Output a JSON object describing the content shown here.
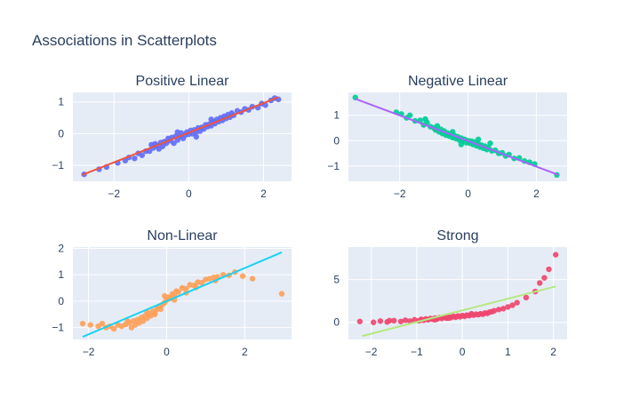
{
  "figure": {
    "title": "Associations in Scatterplots",
    "colors": {
      "plot_bg": "#e5ecf6",
      "grid": "#ffffff",
      "text": "#2a3f5f"
    }
  },
  "chart_data": [
    {
      "type": "scatter",
      "title": "Positive Linear",
      "xlabel": "",
      "ylabel": "",
      "xlim": [
        -3.1,
        2.75
      ],
      "ylim": [
        -1.5,
        1.3
      ],
      "xticks": [
        -2,
        0,
        2
      ],
      "yticks": [
        -1,
        0,
        1
      ],
      "grid": true,
      "point_color": "#636efa",
      "line_color": "#ef553b",
      "trendline": {
        "x": [
          -2.85,
          2.4
        ],
        "y": [
          -1.3,
          1.15
        ]
      },
      "points": [
        [
          -2.8,
          -1.28
        ],
        [
          -2.4,
          -1.12
        ],
        [
          -2.2,
          -1.05
        ],
        [
          -1.9,
          -0.92
        ],
        [
          -1.7,
          -0.85
        ],
        [
          -1.6,
          -0.75
        ],
        [
          -1.45,
          -0.78
        ],
        [
          -1.35,
          -0.62
        ],
        [
          -1.25,
          -0.68
        ],
        [
          -1.15,
          -0.55
        ],
        [
          -1.05,
          -0.55
        ],
        [
          -0.95,
          -0.45
        ],
        [
          -0.9,
          -0.32
        ],
        [
          -0.85,
          -0.38
        ],
        [
          -0.8,
          -0.48
        ],
        [
          -0.75,
          -0.28
        ],
        [
          -0.7,
          -0.4
        ],
        [
          -0.65,
          -0.25
        ],
        [
          -0.6,
          -0.3
        ],
        [
          -0.55,
          -0.15
        ],
        [
          -0.5,
          -0.22
        ],
        [
          -0.45,
          -0.12
        ],
        [
          -0.4,
          -0.3
        ],
        [
          -0.35,
          -0.08
        ],
        [
          -0.3,
          -0.2
        ],
        [
          -0.25,
          -0.1
        ],
        [
          -0.2,
          0.02
        ],
        [
          -0.15,
          -0.15
        ],
        [
          -0.1,
          -0.05
        ],
        [
          -0.05,
          0.05
        ],
        [
          0.0,
          -0.02
        ],
        [
          0.05,
          0.1
        ],
        [
          0.1,
          0.0
        ],
        [
          0.15,
          0.12
        ],
        [
          0.2,
          0.05
        ],
        [
          0.25,
          0.18
        ],
        [
          0.3,
          0.08
        ],
        [
          0.35,
          0.2
        ],
        [
          0.4,
          0.15
        ],
        [
          0.45,
          0.28
        ],
        [
          0.5,
          0.22
        ],
        [
          0.55,
          0.3
        ],
        [
          0.6,
          0.25
        ],
        [
          0.65,
          0.38
        ],
        [
          0.7,
          0.32
        ],
        [
          0.75,
          0.45
        ],
        [
          0.8,
          0.38
        ],
        [
          0.85,
          0.5
        ],
        [
          0.9,
          0.42
        ],
        [
          0.95,
          0.55
        ],
        [
          1.0,
          0.48
        ],
        [
          1.05,
          0.6
        ],
        [
          1.1,
          0.52
        ],
        [
          1.15,
          0.65
        ],
        [
          1.2,
          0.58
        ],
        [
          1.3,
          0.72
        ],
        [
          1.4,
          0.68
        ],
        [
          1.5,
          0.78
        ],
        [
          1.6,
          0.75
        ],
        [
          1.7,
          0.85
        ],
        [
          1.85,
          0.82
        ],
        [
          1.95,
          0.95
        ],
        [
          2.05,
          0.9
        ],
        [
          2.2,
          1.05
        ],
        [
          2.3,
          1.12
        ],
        [
          2.4,
          1.08
        ],
        [
          -0.3,
          0.05
        ],
        [
          0.2,
          -0.1
        ],
        [
          -1.0,
          -0.35
        ],
        [
          0.6,
          0.45
        ]
      ]
    },
    {
      "type": "scatter",
      "title": "Negative Linear",
      "xlabel": "",
      "ylabel": "",
      "xlim": [
        -3.5,
        2.9
      ],
      "ylim": [
        -1.6,
        1.9
      ],
      "xticks": [
        -2,
        0,
        2
      ],
      "yticks": [
        -1,
        0,
        1
      ],
      "grid": true,
      "point_color": "#00cc96",
      "line_color": "#ab63fa",
      "trendline": {
        "x": [
          -3.3,
          2.65
        ],
        "y": [
          1.65,
          -1.35
        ]
      },
      "points": [
        [
          -3.3,
          1.7
        ],
        [
          -2.1,
          1.12
        ],
        [
          -1.95,
          1.05
        ],
        [
          -1.8,
          0.9
        ],
        [
          -1.7,
          1.0
        ],
        [
          -1.55,
          0.78
        ],
        [
          -1.4,
          0.8
        ],
        [
          -1.3,
          0.62
        ],
        [
          -1.2,
          0.72
        ],
        [
          -1.1,
          0.55
        ],
        [
          -1.0,
          0.5
        ],
        [
          -0.95,
          0.42
        ],
        [
          -0.9,
          0.58
        ],
        [
          -0.85,
          0.35
        ],
        [
          -0.8,
          0.45
        ],
        [
          -0.75,
          0.28
        ],
        [
          -0.7,
          0.38
        ],
        [
          -0.65,
          0.22
        ],
        [
          -0.6,
          0.3
        ],
        [
          -0.55,
          0.18
        ],
        [
          -0.5,
          0.25
        ],
        [
          -0.45,
          0.12
        ],
        [
          -0.4,
          0.2
        ],
        [
          -0.35,
          0.08
        ],
        [
          -0.3,
          0.15
        ],
        [
          -0.25,
          0.02
        ],
        [
          -0.2,
          0.1
        ],
        [
          -0.15,
          -0.02
        ],
        [
          -0.1,
          0.05
        ],
        [
          -0.05,
          -0.08
        ],
        [
          0.0,
          0.0
        ],
        [
          0.05,
          -0.1
        ],
        [
          0.1,
          -0.02
        ],
        [
          0.15,
          -0.15
        ],
        [
          0.2,
          -0.05
        ],
        [
          0.25,
          -0.2
        ],
        [
          0.3,
          -0.12
        ],
        [
          0.35,
          -0.25
        ],
        [
          0.4,
          -0.18
        ],
        [
          0.45,
          -0.3
        ],
        [
          0.5,
          -0.22
        ],
        [
          0.55,
          -0.35
        ],
        [
          0.6,
          -0.28
        ],
        [
          0.7,
          -0.4
        ],
        [
          0.8,
          -0.38
        ],
        [
          0.9,
          -0.5
        ],
        [
          1.0,
          -0.48
        ],
        [
          1.1,
          -0.6
        ],
        [
          1.2,
          -0.55
        ],
        [
          1.35,
          -0.7
        ],
        [
          1.5,
          -0.68
        ],
        [
          1.65,
          -0.8
        ],
        [
          1.8,
          -0.85
        ],
        [
          1.95,
          -0.92
        ],
        [
          2.6,
          -1.35
        ],
        [
          -1.25,
          0.85
        ],
        [
          -0.45,
          0.35
        ],
        [
          0.3,
          0.05
        ],
        [
          0.65,
          -0.1
        ],
        [
          -0.2,
          -0.15
        ]
      ]
    },
    {
      "type": "scatter",
      "title": "Non-Linear",
      "xlabel": "",
      "ylabel": "",
      "xlim": [
        -2.4,
        3.2
      ],
      "ylim": [
        -1.45,
        2.05
      ],
      "xticks": [
        -2,
        0,
        2
      ],
      "yticks": [
        -1,
        0,
        1,
        2
      ],
      "grid": true,
      "point_color": "#ffa15a",
      "line_color": "#19d3f3",
      "trendline": {
        "x": [
          -2.15,
          2.95
        ],
        "y": [
          -1.35,
          1.85
        ]
      },
      "points": [
        [
          -2.15,
          -0.85
        ],
        [
          -1.95,
          -0.9
        ],
        [
          -1.75,
          -0.95
        ],
        [
          -1.65,
          -0.85
        ],
        [
          -1.55,
          -1.0
        ],
        [
          -1.45,
          -0.95
        ],
        [
          -1.35,
          -1.05
        ],
        [
          -1.25,
          -0.9
        ],
        [
          -1.15,
          -0.95
        ],
        [
          -1.05,
          -0.88
        ],
        [
          -0.95,
          -0.82
        ],
        [
          -0.9,
          -1.0
        ],
        [
          -0.85,
          -0.75
        ],
        [
          -0.8,
          -0.9
        ],
        [
          -0.75,
          -0.7
        ],
        [
          -0.7,
          -0.82
        ],
        [
          -0.65,
          -0.62
        ],
        [
          -0.6,
          -0.75
        ],
        [
          -0.55,
          -0.55
        ],
        [
          -0.5,
          -0.65
        ],
        [
          -0.45,
          -0.48
        ],
        [
          -0.4,
          -0.55
        ],
        [
          -0.35,
          -0.38
        ],
        [
          -0.3,
          -0.45
        ],
        [
          -0.25,
          -0.3
        ],
        [
          -0.2,
          -0.22
        ],
        [
          -0.15,
          -0.3
        ],
        [
          -0.1,
          -0.12
        ],
        [
          -0.05,
          -0.05
        ],
        [
          0.0,
          0.05
        ],
        [
          0.05,
          0.15
        ],
        [
          0.1,
          0.1
        ],
        [
          0.15,
          0.28
        ],
        [
          0.2,
          0.22
        ],
        [
          0.25,
          0.38
        ],
        [
          0.3,
          0.35
        ],
        [
          0.4,
          0.5
        ],
        [
          0.5,
          0.48
        ],
        [
          0.6,
          0.62
        ],
        [
          0.7,
          0.6
        ],
        [
          0.8,
          0.72
        ],
        [
          0.9,
          0.7
        ],
        [
          1.0,
          0.82
        ],
        [
          1.1,
          0.85
        ],
        [
          1.2,
          0.9
        ],
        [
          1.3,
          0.92
        ],
        [
          1.45,
          1.0
        ],
        [
          1.6,
          0.98
        ],
        [
          1.75,
          1.1
        ],
        [
          1.95,
          0.95
        ],
        [
          2.2,
          0.85
        ],
        [
          2.95,
          0.28
        ],
        [
          -0.5,
          -0.4
        ],
        [
          -0.3,
          -0.5
        ],
        [
          0.2,
          0.05
        ],
        [
          0.5,
          0.32
        ],
        [
          -1.0,
          -0.75
        ],
        [
          0.75,
          0.52
        ],
        [
          1.25,
          0.78
        ],
        [
          -0.05,
          0.2
        ]
      ]
    },
    {
      "type": "scatter",
      "title": "Strong",
      "xlabel": "",
      "ylabel": "",
      "xlim": [
        -2.5,
        2.3
      ],
      "ylim": [
        -2.0,
        8.8
      ],
      "xticks": [
        -2,
        -1,
        0,
        1,
        2
      ],
      "yticks": [
        0,
        5
      ],
      "grid": true,
      "point_color": "#ef476f",
      "line_color": "#b6e880",
      "trendline": {
        "x": [
          -2.2,
          2.05
        ],
        "y": [
          -1.6,
          4.2
        ]
      },
      "points": [
        [
          -2.25,
          0.1
        ],
        [
          -1.95,
          0.0
        ],
        [
          -1.8,
          0.15
        ],
        [
          -1.65,
          0.05
        ],
        [
          -1.5,
          0.2
        ],
        [
          -1.35,
          0.1
        ],
        [
          -1.25,
          0.25
        ],
        [
          -1.15,
          0.15
        ],
        [
          -1.05,
          0.3
        ],
        [
          -0.95,
          0.2
        ],
        [
          -0.9,
          0.35
        ],
        [
          -0.85,
          0.25
        ],
        [
          -0.8,
          0.4
        ],
        [
          -0.75,
          0.3
        ],
        [
          -0.7,
          0.45
        ],
        [
          -0.65,
          0.35
        ],
        [
          -0.6,
          0.5
        ],
        [
          -0.55,
          0.4
        ],
        [
          -0.5,
          0.55
        ],
        [
          -0.45,
          0.45
        ],
        [
          -0.4,
          0.6
        ],
        [
          -0.35,
          0.5
        ],
        [
          -0.3,
          0.65
        ],
        [
          -0.25,
          0.55
        ],
        [
          -0.2,
          0.7
        ],
        [
          -0.15,
          0.6
        ],
        [
          -0.1,
          0.75
        ],
        [
          -0.05,
          0.65
        ],
        [
          0.0,
          0.8
        ],
        [
          0.05,
          0.7
        ],
        [
          0.1,
          0.85
        ],
        [
          0.15,
          0.78
        ],
        [
          0.2,
          0.9
        ],
        [
          0.25,
          0.85
        ],
        [
          0.3,
          0.95
        ],
        [
          0.35,
          0.9
        ],
        [
          0.4,
          1.0
        ],
        [
          0.45,
          0.95
        ],
        [
          0.5,
          1.1
        ],
        [
          0.55,
          1.05
        ],
        [
          0.6,
          1.2
        ],
        [
          0.7,
          1.35
        ],
        [
          0.8,
          1.5
        ],
        [
          0.9,
          1.6
        ],
        [
          1.0,
          1.8
        ],
        [
          1.1,
          2.0
        ],
        [
          1.2,
          2.3
        ],
        [
          1.4,
          2.9
        ],
        [
          1.6,
          3.6
        ],
        [
          1.7,
          4.6
        ],
        [
          1.8,
          5.2
        ],
        [
          1.9,
          6.2
        ],
        [
          2.05,
          7.9
        ],
        [
          -1.6,
          0.2
        ],
        [
          -0.3,
          0.5
        ],
        [
          0.2,
          1.0
        ],
        [
          0.65,
          1.25
        ],
        [
          -0.6,
          0.3
        ]
      ]
    }
  ]
}
